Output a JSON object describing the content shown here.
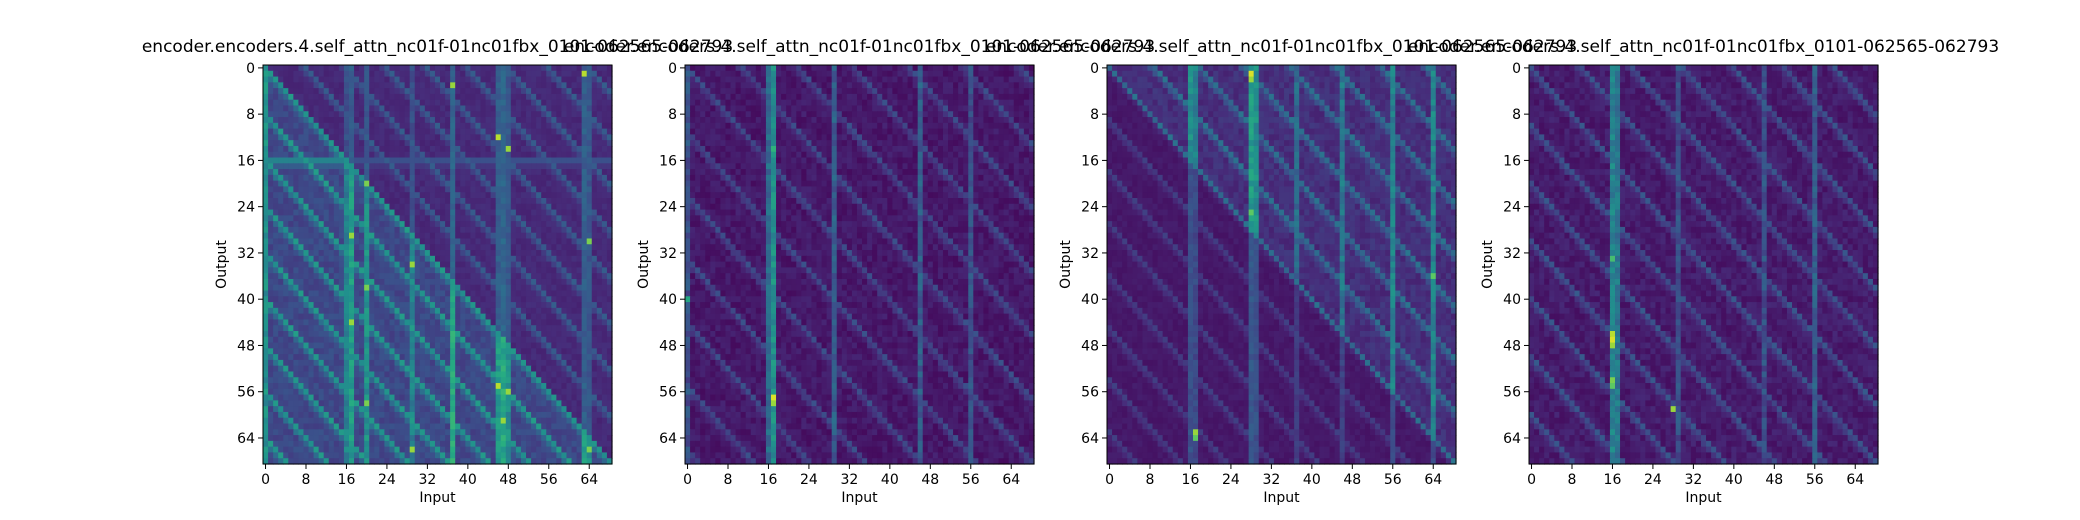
{
  "chart_data": [
    {
      "type": "heatmap",
      "title": "encoder.encoders.4.self_attn_nc01f-01nc01fbx_0101-062565-062793",
      "xlabel": "Input",
      "ylabel": "Output",
      "size": 69,
      "xticks": [
        0,
        8,
        16,
        24,
        32,
        40,
        48,
        56,
        64
      ],
      "yticks": [
        0,
        8,
        16,
        24,
        32,
        40,
        48,
        56,
        64
      ],
      "xlim": [
        0,
        68
      ],
      "ylim": [
        68,
        0
      ],
      "colormap": "viridis",
      "vmin": 0.0,
      "vmax": 1.0,
      "diagonal_mask": "lower",
      "base": 0.22,
      "streak_spacing": 8,
      "streak_level": 0.3,
      "columns": [
        {
          "input": 0,
          "level": 0.5
        },
        {
          "input": 16,
          "level": 0.45
        },
        {
          "input": 17,
          "level": 0.55
        },
        {
          "input": 20,
          "level": 0.5
        },
        {
          "input": 29,
          "level": 0.45
        },
        {
          "input": 37,
          "level": 0.6
        },
        {
          "input": 46,
          "level": 0.55
        },
        {
          "input": 47,
          "level": 0.6
        },
        {
          "input": 48,
          "level": 0.5
        },
        {
          "input": 63,
          "level": 0.55
        },
        {
          "input": 64,
          "level": 0.5
        }
      ],
      "rows": [
        {
          "output": 16,
          "level": 0.45
        },
        {
          "output": 17,
          "level": 0.3
        }
      ],
      "hotspots": [
        {
          "output": 1,
          "input": 63,
          "level": 0.9
        },
        {
          "output": 3,
          "input": 37,
          "level": 0.85
        },
        {
          "output": 12,
          "input": 46,
          "level": 0.9
        },
        {
          "output": 14,
          "input": 48,
          "level": 0.85
        },
        {
          "output": 20,
          "input": 20,
          "level": 0.8
        },
        {
          "output": 29,
          "input": 17,
          "level": 0.85
        },
        {
          "output": 30,
          "input": 64,
          "level": 0.8
        },
        {
          "output": 34,
          "input": 29,
          "level": 0.85
        },
        {
          "output": 38,
          "input": 20,
          "level": 0.8
        },
        {
          "output": 44,
          "input": 17,
          "level": 0.85
        },
        {
          "output": 55,
          "input": 46,
          "level": 0.9
        },
        {
          "output": 56,
          "input": 48,
          "level": 0.85
        },
        {
          "output": 58,
          "input": 20,
          "level": 0.8
        },
        {
          "output": 61,
          "input": 47,
          "level": 0.85
        },
        {
          "output": 66,
          "input": 29,
          "level": 0.85
        },
        {
          "output": 66,
          "input": 64,
          "level": 0.8
        }
      ]
    },
    {
      "type": "heatmap",
      "title": "encoder.encoders.4.self_attn_nc01f-01nc01fbx_0101-062565-062793",
      "xlabel": "Input",
      "ylabel": "Output",
      "size": 69,
      "xticks": [
        0,
        8,
        16,
        24,
        32,
        40,
        48,
        56,
        64
      ],
      "yticks": [
        0,
        8,
        16,
        24,
        32,
        40,
        48,
        56,
        64
      ],
      "xlim": [
        0,
        68
      ],
      "ylim": [
        68,
        0
      ],
      "colormap": "viridis",
      "vmin": 0.0,
      "vmax": 1.0,
      "diagonal_mask": "none",
      "base": 0.07,
      "streak_spacing": 11,
      "streak_level": 0.15,
      "columns": [
        {
          "input": 0,
          "level": 0.25
        },
        {
          "input": 16,
          "level": 0.35
        },
        {
          "input": 17,
          "level": 0.5
        },
        {
          "input": 29,
          "level": 0.3
        },
        {
          "input": 46,
          "level": 0.3
        },
        {
          "input": 56,
          "level": 0.25
        }
      ],
      "rows": [],
      "hotspots": [
        {
          "output": 14,
          "input": 17,
          "level": 0.65
        },
        {
          "output": 15,
          "input": 17,
          "level": 0.55
        },
        {
          "output": 40,
          "input": 0,
          "level": 0.6
        },
        {
          "output": 57,
          "input": 17,
          "level": 0.95
        },
        {
          "output": 58,
          "input": 17,
          "level": 0.85
        }
      ]
    },
    {
      "type": "heatmap",
      "title": "encoder.encoders.4.self_attn_nc01f-01nc01fbx_0101-062565-062793",
      "xlabel": "Input",
      "ylabel": "Output",
      "size": 69,
      "xticks": [
        0,
        8,
        16,
        24,
        32,
        40,
        48,
        56,
        64
      ],
      "yticks": [
        0,
        8,
        16,
        24,
        32,
        40,
        48,
        56,
        64
      ],
      "xlim": [
        0,
        68
      ],
      "ylim": [
        68,
        0
      ],
      "colormap": "viridis",
      "vmin": 0.0,
      "vmax": 1.0,
      "diagonal_mask": "upper-dark",
      "base": 0.14,
      "streak_spacing": 9,
      "streak_level": 0.22,
      "columns": [
        {
          "input": 16,
          "level": 0.5
        },
        {
          "input": 17,
          "level": 0.45
        },
        {
          "input": 28,
          "level": 0.55
        },
        {
          "input": 29,
          "level": 0.5
        },
        {
          "input": 37,
          "level": 0.35
        },
        {
          "input": 46,
          "level": 0.4
        },
        {
          "input": 56,
          "level": 0.45
        },
        {
          "input": 64,
          "level": 0.45
        }
      ],
      "rows": [],
      "hotspots": [
        {
          "output": 1,
          "input": 28,
          "level": 0.95
        },
        {
          "output": 2,
          "input": 28,
          "level": 0.85
        },
        {
          "output": 25,
          "input": 28,
          "level": 0.75
        },
        {
          "output": 36,
          "input": 64,
          "level": 0.75
        },
        {
          "output": 63,
          "input": 17,
          "level": 0.85
        },
        {
          "output": 64,
          "input": 17,
          "level": 0.75
        }
      ]
    },
    {
      "type": "heatmap",
      "title": "encoder.encoders.4.self_attn_nc01f-01nc01fbx_0101-062565-062793",
      "xlabel": "Input",
      "ylabel": "Output",
      "size": 69,
      "xticks": [
        0,
        8,
        16,
        24,
        32,
        40,
        48,
        56,
        64
      ],
      "yticks": [
        0,
        8,
        16,
        24,
        32,
        40,
        48,
        56,
        64
      ],
      "xlim": [
        0,
        68
      ],
      "ylim": [
        68,
        0
      ],
      "colormap": "viridis",
      "vmin": 0.0,
      "vmax": 1.0,
      "diagonal_mask": "none",
      "base": 0.08,
      "streak_spacing": 10,
      "streak_level": 0.17,
      "columns": [
        {
          "input": 16,
          "level": 0.45
        },
        {
          "input": 17,
          "level": 0.4
        },
        {
          "input": 29,
          "level": 0.25
        },
        {
          "input": 46,
          "level": 0.25
        },
        {
          "input": 56,
          "level": 0.3
        }
      ],
      "rows": [],
      "hotspots": [
        {
          "output": 33,
          "input": 16,
          "level": 0.7
        },
        {
          "output": 46,
          "input": 16,
          "level": 0.9
        },
        {
          "output": 47,
          "input": 16,
          "level": 0.95
        },
        {
          "output": 48,
          "input": 16,
          "level": 0.85
        },
        {
          "output": 54,
          "input": 16,
          "level": 0.8
        },
        {
          "output": 55,
          "input": 16,
          "level": 0.75
        },
        {
          "output": 59,
          "input": 28,
          "level": 0.85
        }
      ]
    }
  ]
}
